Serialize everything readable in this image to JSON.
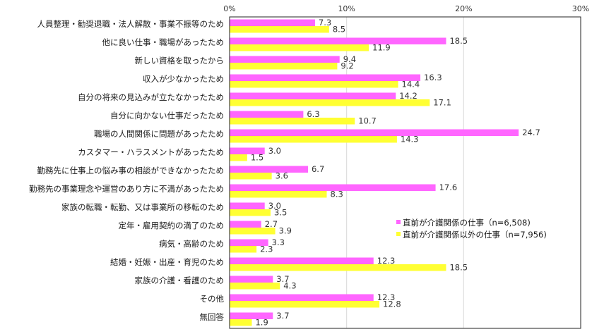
{
  "chart_data": {
    "type": "bar",
    "orientation": "horizontal",
    "categories": [
      "人員整理・勧奨退職・法人解散・事業不振等のため",
      "他に良い仕事・職場があったため",
      "新しい資格を取ったから",
      "収入が少なかったため",
      "自分の将来の見込みが立たなかったため",
      "自分に向かない仕事だったため",
      "職場の人間関係に問題があったため",
      "カスタマー・ハラスメントがあったため",
      "勤務先に仕事上の悩み事の相談ができなかったため",
      "勤務先の事業理念や運営のあり方に不満があったため",
      "家族の転職・転勤、又は事業所の移転のため",
      "定年・雇用契約の満了のため",
      "病気・高齢のため",
      "結婚・妊娠・出産・育児のため",
      "家族の介護・看護のため",
      "その他",
      "無回答"
    ],
    "series": [
      {
        "name": "直前が介護関係の仕事（n=6,508)",
        "color": "#FF66FF",
        "values": [
          7.3,
          18.5,
          9.4,
          16.3,
          14.2,
          6.3,
          24.7,
          3.0,
          6.7,
          17.6,
          3.0,
          2.7,
          3.3,
          12.3,
          3.7,
          12.3,
          3.7
        ],
        "labels": [
          "7.3",
          "18.5",
          "9.4",
          "16.3",
          "14.2",
          "6.3",
          "24.7",
          "3.0",
          "6.7",
          "17.6",
          "3.0",
          "2.7",
          "3.3",
          "12.3",
          "3.7",
          "12.3",
          "3.7"
        ]
      },
      {
        "name": "直前が介護関係以外の仕事（n=7,956)",
        "color": "#FFFF33",
        "values": [
          8.5,
          11.9,
          9.2,
          14.4,
          17.1,
          10.7,
          14.3,
          1.5,
          3.6,
          8.3,
          3.5,
          3.9,
          2.3,
          18.5,
          4.3,
          12.8,
          1.9
        ],
        "labels": [
          "8.5",
          "11.9",
          "9.2",
          "14.4",
          "17.1",
          "10.7",
          "14.3",
          "1.5",
          "3.6",
          "8.3",
          "3.5",
          "3.9",
          "2.3",
          "18.5",
          "4.3",
          "12.8",
          "1.9"
        ]
      }
    ],
    "xlim": [
      0,
      30
    ],
    "xticks": [
      0,
      10,
      20,
      30
    ],
    "xtick_labels": [
      "0%",
      "10%",
      "20%",
      "30%"
    ],
    "axis_position": "top",
    "grid": true,
    "legend_position": "right"
  }
}
